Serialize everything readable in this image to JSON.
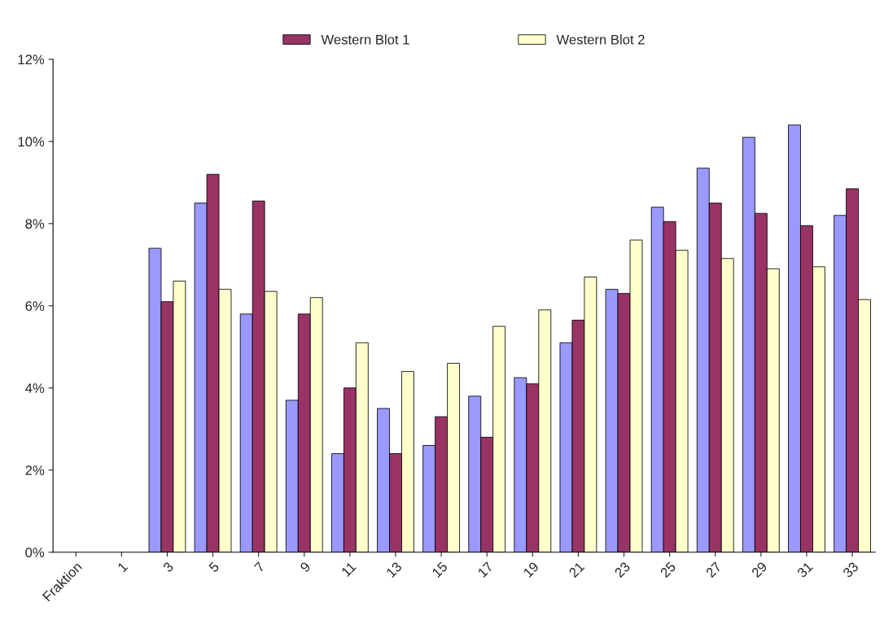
{
  "chart_data": {
    "type": "bar",
    "categories": [
      "Fraktion",
      "1",
      "3",
      "5",
      "7",
      "9",
      "11",
      "13",
      "15",
      "17",
      "19",
      "21",
      "23",
      "25",
      "27",
      "29",
      "31",
      "33"
    ],
    "series": [
      {
        "color": "#9999ff",
        "values": [
          null,
          null,
          7.4,
          8.5,
          5.8,
          3.7,
          2.4,
          3.5,
          2.6,
          3.8,
          4.25,
          5.1,
          6.4,
          8.4,
          9.35,
          10.1,
          10.4,
          8.2
        ]
      },
      {
        "name": "Western Blot 1",
        "color": "#993366",
        "values": [
          null,
          null,
          6.1,
          9.2,
          8.55,
          5.8,
          4.0,
          2.4,
          3.3,
          2.8,
          4.1,
          5.65,
          6.3,
          8.05,
          8.5,
          8.25,
          7.95,
          8.85
        ]
      },
      {
        "name": "Western Blot 2",
        "color": "#ffffcc",
        "values": [
          null,
          null,
          6.6,
          6.4,
          6.35,
          6.2,
          5.1,
          4.4,
          4.6,
          5.5,
          5.9,
          6.7,
          7.6,
          7.35,
          7.15,
          6.9,
          6.95,
          6.15
        ]
      }
    ],
    "ylim": [
      0,
      12
    ],
    "yticks": [
      {
        "value": 0,
        "label": "0%"
      },
      {
        "value": 2,
        "label": "2%"
      },
      {
        "value": 4,
        "label": "4%"
      },
      {
        "value": 6,
        "label": "6%"
      },
      {
        "value": 8,
        "label": "8%"
      },
      {
        "value": 10,
        "label": "10%"
      },
      {
        "value": 12,
        "label": "12%"
      }
    ],
    "legend": "top",
    "grid": false
  }
}
